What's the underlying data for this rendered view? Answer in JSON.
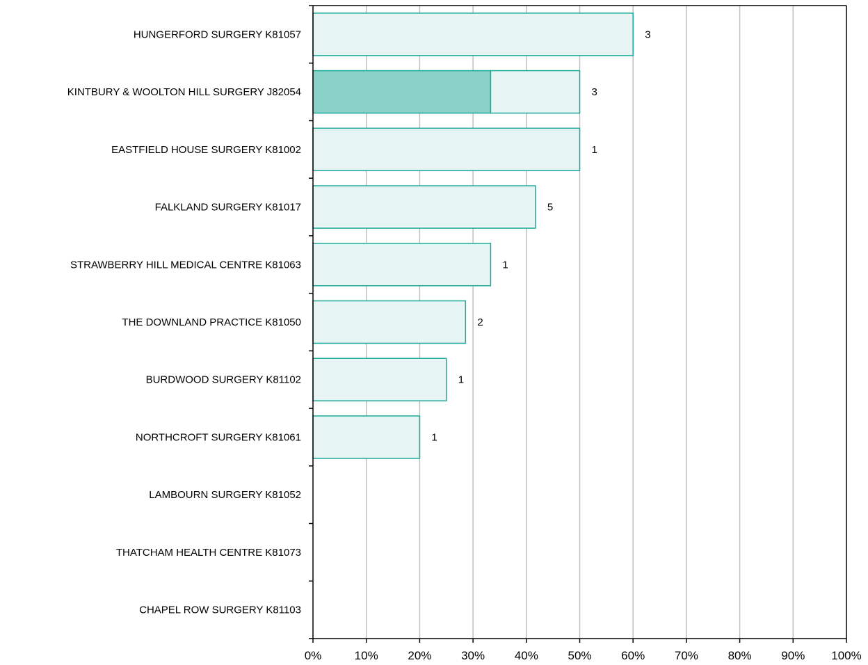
{
  "chart_data": {
    "type": "bar",
    "orientation": "horizontal",
    "stacked": true,
    "categories": [
      "HUNGERFORD SURGERY K81057",
      "KINTBURY & WOOLTON HILL SURGERY J82054",
      "EASTFIELD HOUSE SURGERY K81002",
      "FALKLAND SURGERY K81017",
      "STRAWBERRY HILL MEDICAL CENTRE K81063",
      "THE DOWNLAND PRACTICE K81050",
      "BURDWOOD SURGERY K81102",
      "NORTHCROFT SURGERY K81061",
      "LAMBOURN SURGERY K81052",
      "THATCHAM HEALTH CENTRE K81073",
      "CHAPEL ROW SURGERY K81103"
    ],
    "series": [
      {
        "values": [
          0,
          33.3,
          0,
          0,
          0,
          0,
          0,
          0,
          0,
          0,
          0
        ]
      },
      {
        "values": [
          60,
          16.7,
          50,
          41.7,
          33.3,
          28.6,
          25,
          20,
          0,
          0,
          0
        ]
      }
    ],
    "data_labels": [
      "3",
      "3",
      "1",
      "5",
      "1",
      "2",
      "1",
      "1",
      "",
      "",
      ""
    ],
    "x_ticks": [
      "0%",
      "10%",
      "20%",
      "30%",
      "40%",
      "50%",
      "60%",
      "70%",
      "80%",
      "90%",
      "100%"
    ],
    "xlim": [
      0,
      100
    ],
    "xlabel": "",
    "ylabel": "",
    "title": "",
    "grid": "vertical",
    "legend": "none",
    "colors": {
      "dark_fill": "#8ad1c9",
      "light_fill": "#e6f4f3",
      "bar_stroke": "#1aaa99",
      "grid": "#bfbfbf",
      "axis": "#000000"
    }
  }
}
